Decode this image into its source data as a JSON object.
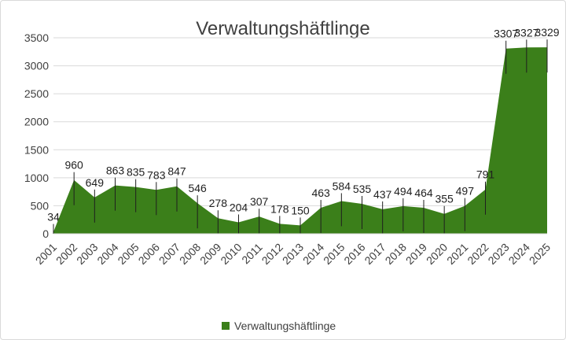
{
  "chart_data": {
    "type": "area",
    "title": "Verwaltungshäftlinge",
    "x": [
      "2001",
      "2002",
      "2003",
      "2004",
      "2005",
      "2006",
      "2007",
      "2008",
      "2009",
      "2010",
      "2011",
      "2012",
      "2013",
      "2014",
      "2015",
      "2016",
      "2017",
      "2018",
      "2019",
      "2020",
      "2021",
      "2022",
      "2023",
      "2024",
      "2025"
    ],
    "series": [
      {
        "name": "Verwaltungshäftlinge",
        "values": [
          34,
          960,
          649,
          863,
          835,
          783,
          847,
          546,
          278,
          204,
          307,
          178,
          150,
          463,
          584,
          535,
          437,
          494,
          464,
          355,
          497,
          791,
          3307,
          3327,
          3329
        ],
        "color": "#3b7f1a"
      }
    ],
    "yticks": [
      "0",
      "500",
      "1000",
      "1500",
      "2000",
      "2500",
      "3000",
      "3500"
    ],
    "ylim": [
      0,
      3500
    ],
    "grid": true,
    "legend": "bottom"
  }
}
